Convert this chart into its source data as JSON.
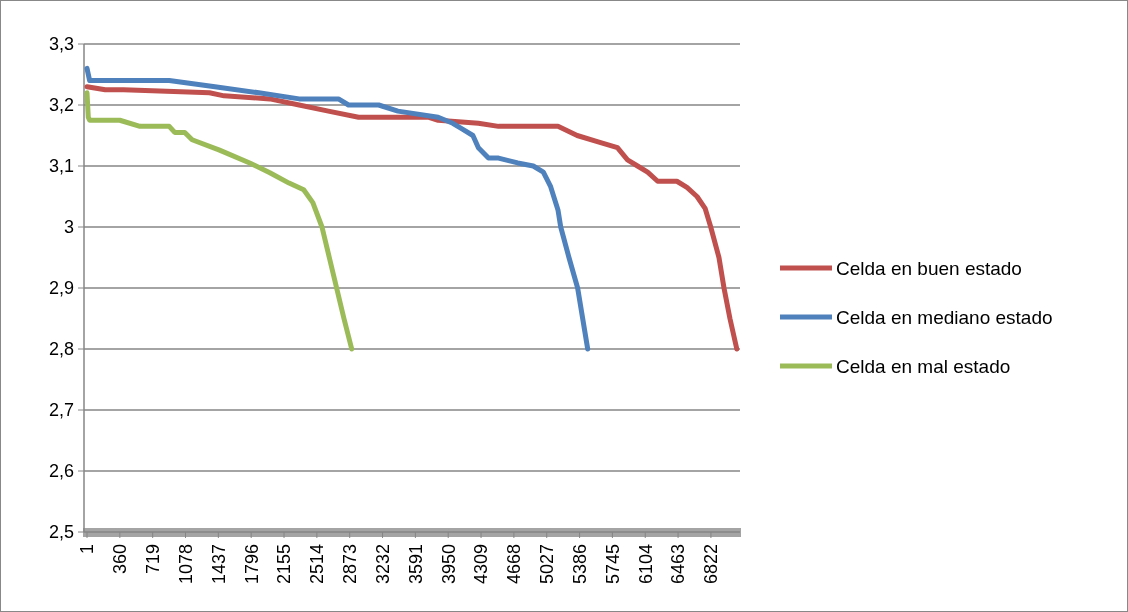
{
  "chart_data": {
    "type": "line",
    "xlim": [
      1,
      7140
    ],
    "xticks": [
      1,
      360,
      719,
      1078,
      1437,
      1796,
      2155,
      2514,
      2873,
      3232,
      3591,
      3950,
      4309,
      4668,
      5027,
      5386,
      5745,
      6104,
      6463,
      6822
    ],
    "ylim": [
      2.5,
      3.3
    ],
    "yticks": [
      {
        "value": 2.5,
        "label": "2,5"
      },
      {
        "value": 2.6,
        "label": "2,6"
      },
      {
        "value": 2.7,
        "label": "2,7"
      },
      {
        "value": 2.8,
        "label": "2,8"
      },
      {
        "value": 2.9,
        "label": "2,9"
      },
      3,
      {
        "value": 3.1,
        "label": "3,1"
      },
      {
        "value": 3.2,
        "label": "3,2"
      },
      {
        "value": 3.3,
        "label": "3,3"
      }
    ],
    "grid": "y",
    "legend": "right",
    "line_style": "solid",
    "marker": "none",
    "series": [
      {
        "name": "Celda en buen estado",
        "color": "#c0504d",
        "x": [
          1,
          200,
          400,
          1340,
          1500,
          2000,
          2320,
          2640,
          2970,
          3730,
          3840,
          4280,
          4500,
          5150,
          5360,
          5580,
          5800,
          5910,
          6020,
          6130,
          6240,
          6450,
          6560,
          6670,
          6760,
          6820,
          6910,
          6965,
          7030,
          7105
        ],
        "values": [
          3.23,
          3.225,
          3.225,
          3.22,
          3.215,
          3.21,
          3.2,
          3.19,
          3.18,
          3.18,
          3.175,
          3.17,
          3.165,
          3.165,
          3.15,
          3.14,
          3.13,
          3.11,
          3.1,
          3.09,
          3.075,
          3.075,
          3.065,
          3.05,
          3.03,
          3.0,
          2.95,
          2.9,
          2.85,
          2.8
        ]
      },
      {
        "name": "Celda en mediano estado",
        "color": "#4f81bd",
        "x": [
          1,
          30,
          900,
          1400,
          1880,
          2320,
          2750,
          2860,
          3190,
          3400,
          3840,
          4000,
          4110,
          4220,
          4280,
          4390,
          4500,
          4710,
          4880,
          4990,
          5070,
          5150,
          5180,
          5270,
          5365,
          5420,
          5475
        ],
        "values": [
          3.26,
          3.24,
          3.24,
          3.23,
          3.22,
          3.21,
          3.21,
          3.2,
          3.2,
          3.19,
          3.18,
          3.17,
          3.16,
          3.15,
          3.13,
          3.113,
          3.113,
          3.105,
          3.1,
          3.09,
          3.066,
          3.028,
          3.0,
          2.95,
          2.9,
          2.85,
          2.8
        ]
      },
      {
        "name": "Celda en mal estado",
        "color": "#9bbb59",
        "x": [
          1,
          15,
          30,
          360,
          580,
          900,
          960,
          1070,
          1150,
          1450,
          1780,
          2000,
          2210,
          2370,
          2470,
          2570,
          2650,
          2730,
          2810,
          2895
        ],
        "values": [
          3.22,
          3.18,
          3.175,
          3.175,
          3.165,
          3.165,
          3.155,
          3.155,
          3.143,
          3.126,
          3.105,
          3.089,
          3.072,
          3.061,
          3.04,
          3.0,
          2.95,
          2.9,
          2.85,
          2.8
        ]
      }
    ]
  }
}
